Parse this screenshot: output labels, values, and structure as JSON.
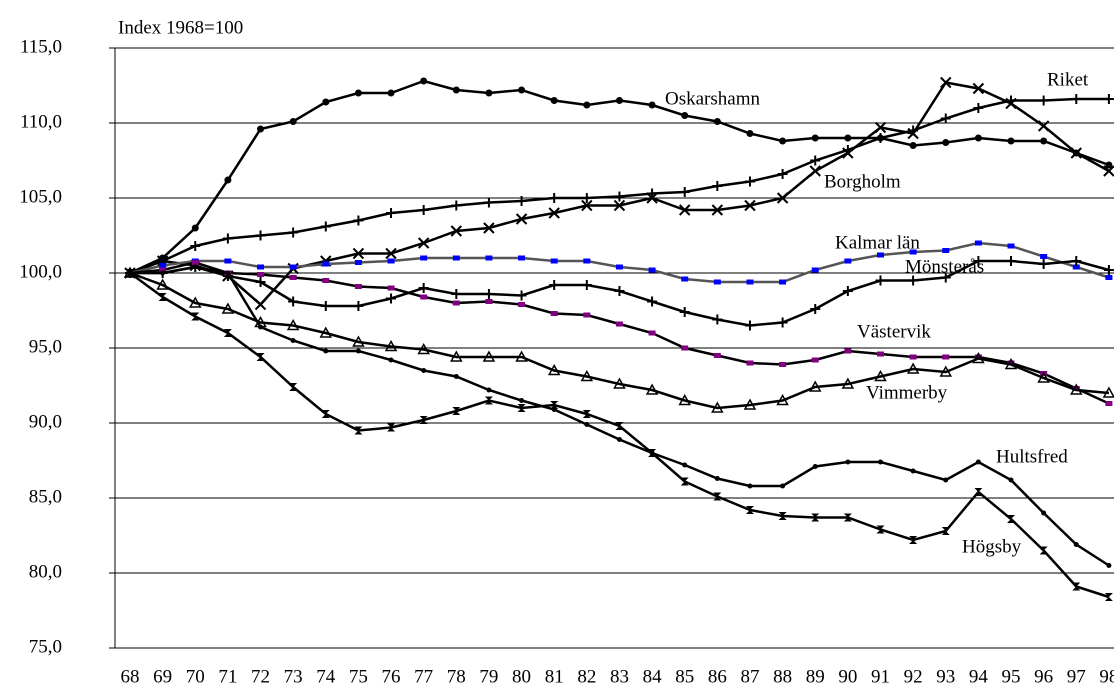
{
  "chart_data": {
    "type": "line",
    "y_axis_label": "Index 1968=100",
    "categories": [
      "68",
      "69",
      "70",
      "71",
      "72",
      "73",
      "74",
      "75",
      "76",
      "77",
      "78",
      "79",
      "80",
      "81",
      "82",
      "83",
      "84",
      "85",
      "86",
      "87",
      "88",
      "89",
      "90",
      "91",
      "92",
      "93",
      "94",
      "95",
      "96",
      "97",
      "98"
    ],
    "ylim": [
      75,
      115
    ],
    "yticks": [
      {
        "value": 75,
        "label": "75,0"
      },
      {
        "value": 80,
        "label": "80,0"
      },
      {
        "value": 85,
        "label": "85,0"
      },
      {
        "value": 90,
        "label": "90,0"
      },
      {
        "value": 95,
        "label": "95,0"
      },
      {
        "value": 100,
        "label": "100,0"
      },
      {
        "value": 105,
        "label": "105,0"
      },
      {
        "value": 110,
        "label": "110,0"
      },
      {
        "value": 115,
        "label": "115,0"
      }
    ],
    "grid": true,
    "series": [
      {
        "name": "Oskarshamn",
        "color": "#000000",
        "values": [
          100,
          101,
          103,
          106.2,
          109.6,
          110.1,
          111.4,
          112,
          112,
          112.8,
          112.2,
          112,
          112.2,
          111.5,
          111.2,
          111.5,
          111.2,
          110.5,
          110.1,
          109.3,
          108.8,
          109,
          109,
          109,
          108.5,
          108.7,
          109,
          108.8,
          108.8,
          108,
          107.2
        ]
      },
      {
        "name": "Riket",
        "color": "#000000",
        "values": [
          100,
          100.8,
          101.8,
          102.3,
          102.5,
          102.7,
          103.1,
          103.5,
          104,
          104.2,
          104.5,
          104.7,
          104.8,
          105,
          105,
          105.1,
          105.3,
          105.4,
          105.8,
          106.1,
          106.6,
          107.5,
          108.2,
          109,
          109.5,
          110.3,
          111,
          111.5,
          111.5,
          111.6,
          111.6
        ]
      },
      {
        "name": "Borgholm",
        "color": "#000000",
        "values": [
          100,
          100.8,
          100.5,
          99.8,
          97.9,
          100.3,
          100.8,
          101.3,
          101.3,
          102,
          102.8,
          103,
          103.6,
          104,
          104.5,
          104.5,
          105,
          104.2,
          104.2,
          104.5,
          105,
          106.8,
          108,
          109.7,
          109.3,
          112.7,
          112.3,
          111.3,
          109.8,
          108,
          106.8
        ]
      },
      {
        "name": "Kalmar län",
        "color": "#555555",
        "marker_color": "#0000ff",
        "values": [
          100,
          100.5,
          100.8,
          100.8,
          100.4,
          100.4,
          100.6,
          100.7,
          100.8,
          101,
          101,
          101,
          101,
          100.8,
          100.8,
          100.4,
          100.2,
          99.6,
          99.4,
          99.4,
          99.4,
          100.2,
          100.8,
          101.2,
          101.4,
          101.5,
          102,
          101.8,
          101.1,
          100.4,
          99.7
        ]
      },
      {
        "name": "Mönsterås",
        "color": "#000000",
        "values": [
          100,
          100,
          100.4,
          99.8,
          99.4,
          98.1,
          97.8,
          97.8,
          98.3,
          99,
          98.6,
          98.6,
          98.5,
          99.2,
          99.2,
          98.8,
          98.1,
          97.4,
          96.9,
          96.5,
          96.7,
          97.6,
          98.8,
          99.5,
          99.5,
          99.7,
          100.8,
          100.8,
          100.6,
          100.8,
          100.2
        ]
      },
      {
        "name": "Västervik",
        "color": "#000000",
        "marker_color": "#800080",
        "values": [
          100,
          100.2,
          100.7,
          100,
          99.9,
          99.7,
          99.5,
          99.1,
          99,
          98.4,
          98,
          98.1,
          97.9,
          97.3,
          97.2,
          96.6,
          96,
          95,
          94.5,
          94,
          93.9,
          94.2,
          94.8,
          94.6,
          94.4,
          94.4,
          94.4,
          94,
          93.3,
          92.3,
          91.3
        ]
      },
      {
        "name": "Vimmerby",
        "color": "#000000",
        "values": [
          100,
          99.2,
          98,
          97.6,
          96.7,
          96.5,
          96,
          95.4,
          95.1,
          94.9,
          94.4,
          94.4,
          94.4,
          93.5,
          93.1,
          92.6,
          92.2,
          91.5,
          91,
          91.2,
          91.5,
          92.4,
          92.6,
          93.1,
          93.6,
          93.4,
          94.3,
          93.9,
          93,
          92.2,
          92
        ]
      },
      {
        "name": "Hultsfred",
        "color": "#000000",
        "values": [
          100,
          100,
          100.4,
          100,
          96.4,
          95.5,
          94.8,
          94.8,
          94.2,
          93.5,
          93.1,
          92.2,
          91.5,
          90.9,
          89.9,
          88.9,
          88,
          87.2,
          86.3,
          85.8,
          85.8,
          87.1,
          87.4,
          87.4,
          86.8,
          86.2,
          87.4,
          86.2,
          84,
          81.9,
          80.5
        ]
      },
      {
        "name": "Högsby",
        "color": "#000000",
        "values": [
          100,
          98.4,
          97.1,
          96,
          94.4,
          92.4,
          90.6,
          89.5,
          89.7,
          90.2,
          90.8,
          91.5,
          91,
          91.2,
          90.6,
          89.8,
          88,
          86.1,
          85.1,
          84.2,
          83.8,
          83.7,
          83.7,
          82.9,
          82.2,
          82.8,
          85.4,
          83.6,
          81.5,
          79.1,
          78.4
        ]
      }
    ]
  }
}
